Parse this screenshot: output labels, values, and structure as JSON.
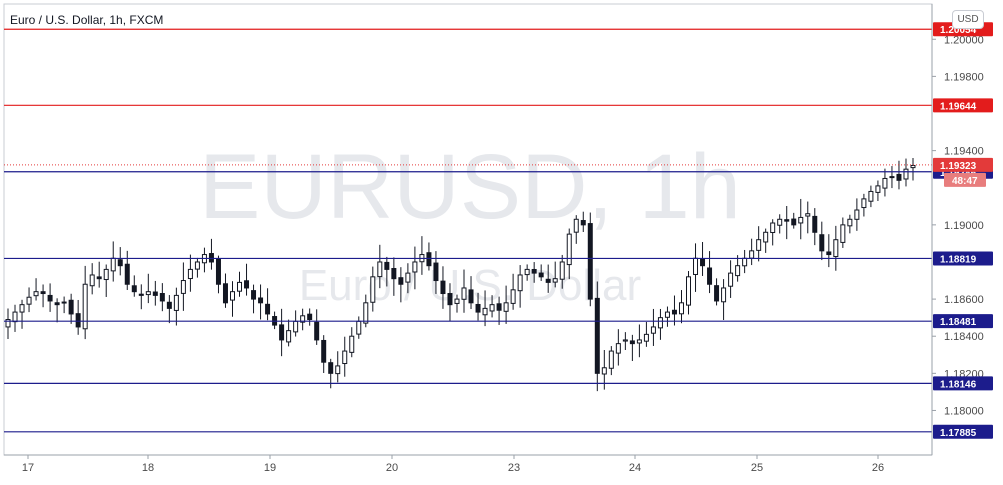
{
  "title": "Euro / U.S. Dollar, 1h, FXCM",
  "watermark": {
    "main": "EURUSD, 1h",
    "sub": "Euro / U.S. Dollar"
  },
  "currency_button": "USD",
  "colors": {
    "up": "#26a69a",
    "down": "#ef5350",
    "candle": "#131722",
    "resistance": "#e31c1c",
    "support": "#1c1c8c",
    "price_tag": "#e33a3a",
    "countdown_tag": "#e87d7d"
  },
  "chart_data": {
    "type": "candlestick",
    "title": "Euro / U.S. Dollar, 1h, FXCM",
    "ylim": [
      1.1776,
      1.2019
    ],
    "y_ticks": [
      "1.18000",
      "1.18200",
      "1.18400",
      "1.18600",
      "1.19000",
      "1.19400",
      "1.19800",
      "1.20000"
    ],
    "x_ticks": [
      "17",
      "18",
      "19",
      "20",
      "23",
      "24",
      "25",
      "26"
    ],
    "horizontal_lines": [
      {
        "label": "1.20054",
        "value": 1.20054,
        "kind": "resistance"
      },
      {
        "label": "1.19644",
        "value": 1.19644,
        "kind": "resistance"
      },
      {
        "label": "1.19286",
        "value": 1.19286,
        "kind": "support"
      },
      {
        "label": "1.18819",
        "value": 1.18819,
        "kind": "support"
      },
      {
        "label": "1.18481",
        "value": 1.18481,
        "kind": "support"
      },
      {
        "label": "1.18146",
        "value": 1.18146,
        "kind": "support"
      },
      {
        "label": "1.17885",
        "value": 1.17885,
        "kind": "support"
      }
    ],
    "last_price": {
      "label": "1.19323",
      "value": 1.19323
    },
    "countdown": "48:47",
    "close_path": [
      1.1849,
      1.1853,
      1.1857,
      1.1861,
      1.1864,
      1.1863,
      1.1859,
      1.1857,
      1.1858,
      1.1852,
      1.1845,
      1.1868,
      1.1873,
      1.1871,
      1.1876,
      1.1882,
      1.1878,
      1.1868,
      1.1864,
      1.1862,
      1.1864,
      1.1862,
      1.1859,
      1.1855,
      1.1862,
      1.187,
      1.1876,
      1.188,
      1.1884,
      1.188,
      1.1868,
      1.1858,
      1.1864,
      1.1869,
      1.1866,
      1.186,
      1.1858,
      1.1852,
      1.1846,
      1.1838,
      1.1843,
      1.1848,
      1.1851,
      1.1849,
      1.1838,
      1.1826,
      1.182,
      1.1824,
      1.1832,
      1.184,
      1.1848,
      1.1858,
      1.1872,
      1.188,
      1.1876,
      1.1871,
      1.1868,
      1.1874,
      1.188,
      1.1884,
      1.1878,
      1.187,
      1.1863,
      1.1857,
      1.186,
      1.1866,
      1.1858,
      1.1853,
      1.1855,
      1.1857,
      1.1854,
      1.1858,
      1.1865,
      1.1873,
      1.1876,
      1.1874,
      1.1872,
      1.1869,
      1.1871,
      1.188,
      1.1895,
      1.1903,
      1.19,
      1.186,
      1.182,
      1.1823,
      1.1832,
      1.1836,
      1.1838,
      1.1836,
      1.1838,
      1.1841,
      1.1845,
      1.185,
      1.1853,
      1.1852,
      1.1858,
      1.1872,
      1.1882,
      1.1878,
      1.1868,
      1.1859,
      1.1866,
      1.1874,
      1.1878,
      1.1882,
      1.1886,
      1.1892,
      1.1896,
      1.1901,
      1.1903,
      1.1902,
      1.19,
      1.1904,
      1.1906,
      1.1896,
      1.1886,
      1.1884,
      1.1892,
      1.19,
      1.1903,
      1.1908,
      1.1914,
      1.1918,
      1.1921,
      1.1925,
      1.1926,
      1.1924,
      1.193,
      1.1932
    ]
  }
}
